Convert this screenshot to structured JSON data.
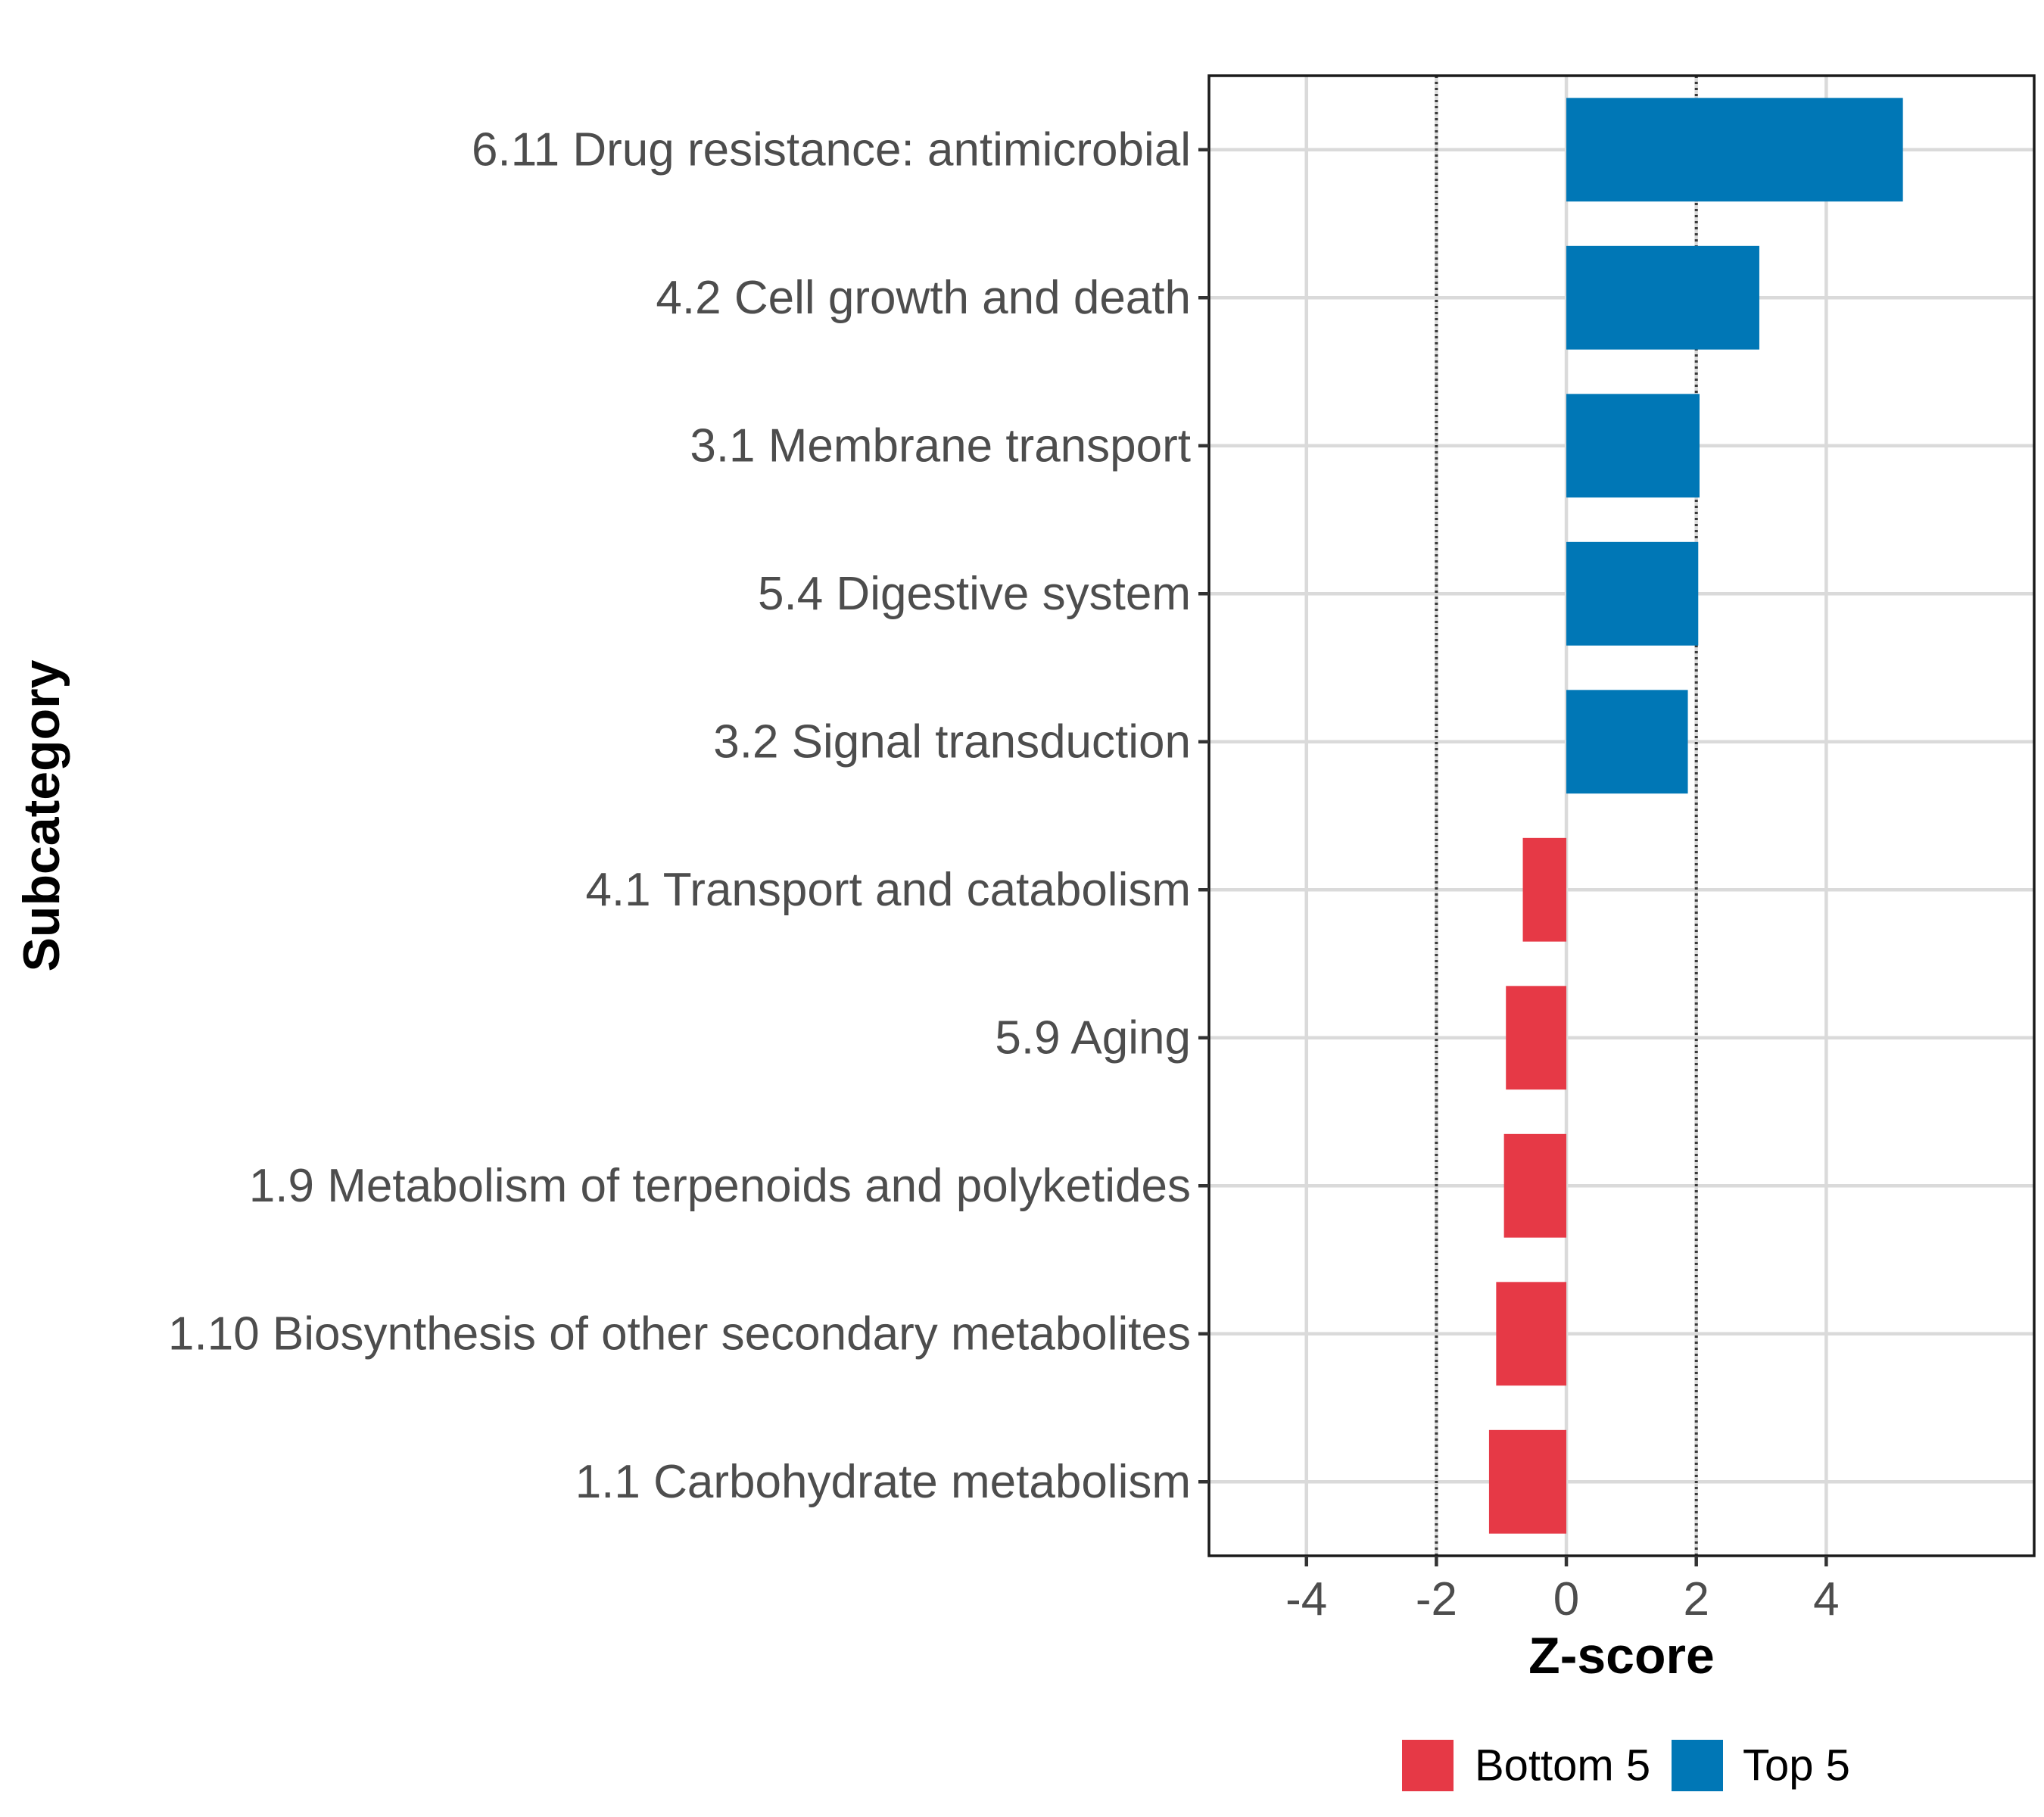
{
  "chart_data": {
    "type": "bar",
    "orientation": "horizontal",
    "xlabel": "Z-score",
    "ylabel": "Subcategory",
    "xlim": [
      -5.5,
      7.2
    ],
    "xticks": [
      -4,
      -2,
      0,
      2,
      4
    ],
    "xtick_labels": [
      "-4",
      "-2",
      "0",
      "2",
      "4"
    ],
    "reference_lines": [
      -2,
      2
    ],
    "grid": true,
    "legend_position": "bottom",
    "legend": [
      {
        "label": "Bottom 5",
        "color": "#e63946"
      },
      {
        "label": "Top 5",
        "color": "#0077b6"
      }
    ],
    "categories": [
      "6.11 Drug resistance: antimicrobial",
      "4.2 Cell growth and death",
      "3.1 Membrane transport",
      "5.4 Digestive system",
      "3.2 Signal transduction",
      "4.1 Transport and catabolism",
      "5.9 Aging",
      "1.9 Metabolism of terpenoids and polyketides",
      "1.10 Biosynthesis of other secondary metabolites",
      "1.1 Carbohydrate metabolism"
    ],
    "values": [
      5.18,
      2.97,
      2.05,
      2.03,
      1.87,
      -0.67,
      -0.93,
      -0.96,
      -1.08,
      -1.19
    ],
    "groups": [
      "Top 5",
      "Top 5",
      "Top 5",
      "Top 5",
      "Top 5",
      "Bottom 5",
      "Bottom 5",
      "Bottom 5",
      "Bottom 5",
      "Bottom 5"
    ]
  }
}
